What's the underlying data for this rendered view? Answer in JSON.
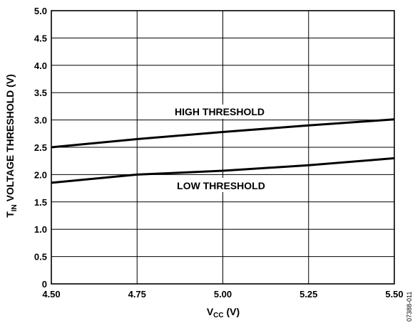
{
  "chart_data": {
    "type": "line",
    "xlabel": {
      "main": "V",
      "sub": "CC",
      "unit": " (V)"
    },
    "ylabel": {
      "main": "T",
      "sub": "IN",
      "rest": " VOLTAGE THRESHOLD (V)"
    },
    "xlim": [
      4.5,
      5.5
    ],
    "ylim": [
      0,
      5.0
    ],
    "x_ticks": [
      4.5,
      4.75,
      5.0,
      5.25,
      5.5
    ],
    "x_tick_labels": [
      "4.50",
      "4.75",
      "5.00",
      "5.25",
      "5.50"
    ],
    "y_ticks": [
      0,
      0.5,
      1.0,
      1.5,
      2.0,
      2.5,
      3.0,
      3.5,
      4.0,
      4.5,
      5.0
    ],
    "y_tick_labels": [
      "0",
      "0.5",
      "1.0",
      "1.5",
      "2.0",
      "2.5",
      "3.0",
      "3.5",
      "4.0",
      "4.5",
      "5.0"
    ],
    "grid": true,
    "series": [
      {
        "name": "HIGH THRESHOLD",
        "x": [
          4.5,
          4.75,
          5.0,
          5.25,
          5.5
        ],
        "y": [
          2.5,
          2.65,
          2.78,
          2.9,
          3.01
        ]
      },
      {
        "name": "LOW THRESHOLD",
        "x": [
          4.5,
          4.75,
          5.0,
          5.25,
          5.5
        ],
        "y": [
          1.85,
          2.0,
          2.07,
          2.17,
          2.3
        ]
      }
    ],
    "annotations": [
      "HIGH THRESHOLD",
      "LOW THRESHOLD"
    ],
    "figure_id": "07388-011"
  }
}
